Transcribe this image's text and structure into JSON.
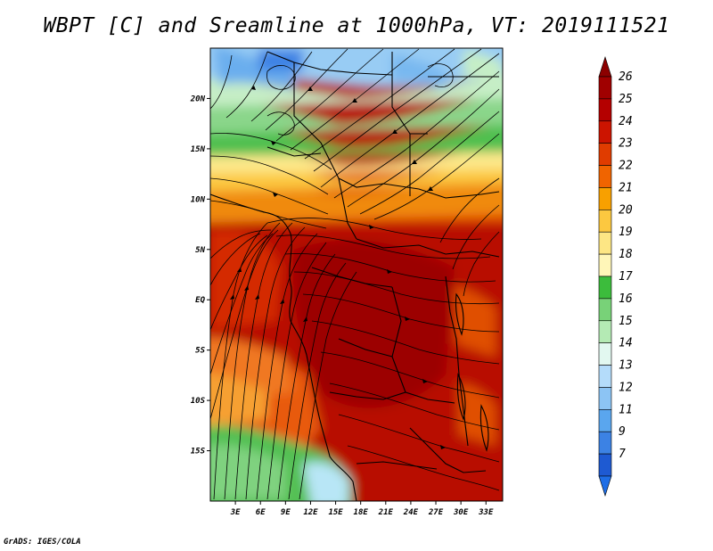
{
  "title": "WBPT [C] and Sreamline at 1000hPa, VT: 2019111521",
  "footer": "GrADS: IGES/COLA",
  "map": {
    "lon_range": [
      0,
      35
    ],
    "lat_range": [
      -20,
      25
    ],
    "lat_ticks": [
      {
        "value": 20,
        "label": "20N"
      },
      {
        "value": 15,
        "label": "15N"
      },
      {
        "value": 10,
        "label": "10N"
      },
      {
        "value": 5,
        "label": "5N"
      },
      {
        "value": 0,
        "label": "EQ"
      },
      {
        "value": -5,
        "label": "5S"
      },
      {
        "value": -10,
        "label": "10S"
      },
      {
        "value": -15,
        "label": "15S"
      }
    ],
    "lon_ticks": [
      {
        "value": 3,
        "label": "3E"
      },
      {
        "value": 6,
        "label": "6E"
      },
      {
        "value": 9,
        "label": "9E"
      },
      {
        "value": 12,
        "label": "12E"
      },
      {
        "value": 15,
        "label": "15E"
      },
      {
        "value": 18,
        "label": "18E"
      },
      {
        "value": 21,
        "label": "21E"
      },
      {
        "value": 24,
        "label": "24E"
      },
      {
        "value": 27,
        "label": "27E"
      },
      {
        "value": 30,
        "label": "30E"
      },
      {
        "value": 33,
        "label": "33E"
      }
    ]
  },
  "colorbar": {
    "levels": [
      {
        "label": "26",
        "color": "#a00000"
      },
      {
        "label": "25",
        "color": "#b40000"
      },
      {
        "label": "24",
        "color": "#cc1400"
      },
      {
        "label": "23",
        "color": "#e03c00"
      },
      {
        "label": "22",
        "color": "#f06400"
      },
      {
        "label": "21",
        "color": "#f8a000"
      },
      {
        "label": "20",
        "color": "#fcc840"
      },
      {
        "label": "19",
        "color": "#fde684"
      },
      {
        "label": "18",
        "color": "#fff6b8"
      },
      {
        "label": "17",
        "color": "#3cbc3c"
      },
      {
        "label": "16",
        "color": "#78d278"
      },
      {
        "label": "15",
        "color": "#b4eab4"
      },
      {
        "label": "14",
        "color": "#e2f8f0"
      },
      {
        "label": "13",
        "color": "#b4dcfa"
      },
      {
        "label": "12",
        "color": "#8cc4f4"
      },
      {
        "label": "11",
        "color": "#5aa6ee"
      },
      {
        "label": "9",
        "color": "#3c82e4"
      },
      {
        "label": "7",
        "color": "#1e5ad2"
      }
    ],
    "top_color": "#8c0000",
    "bottom_color": "#1e6ee6"
  }
}
